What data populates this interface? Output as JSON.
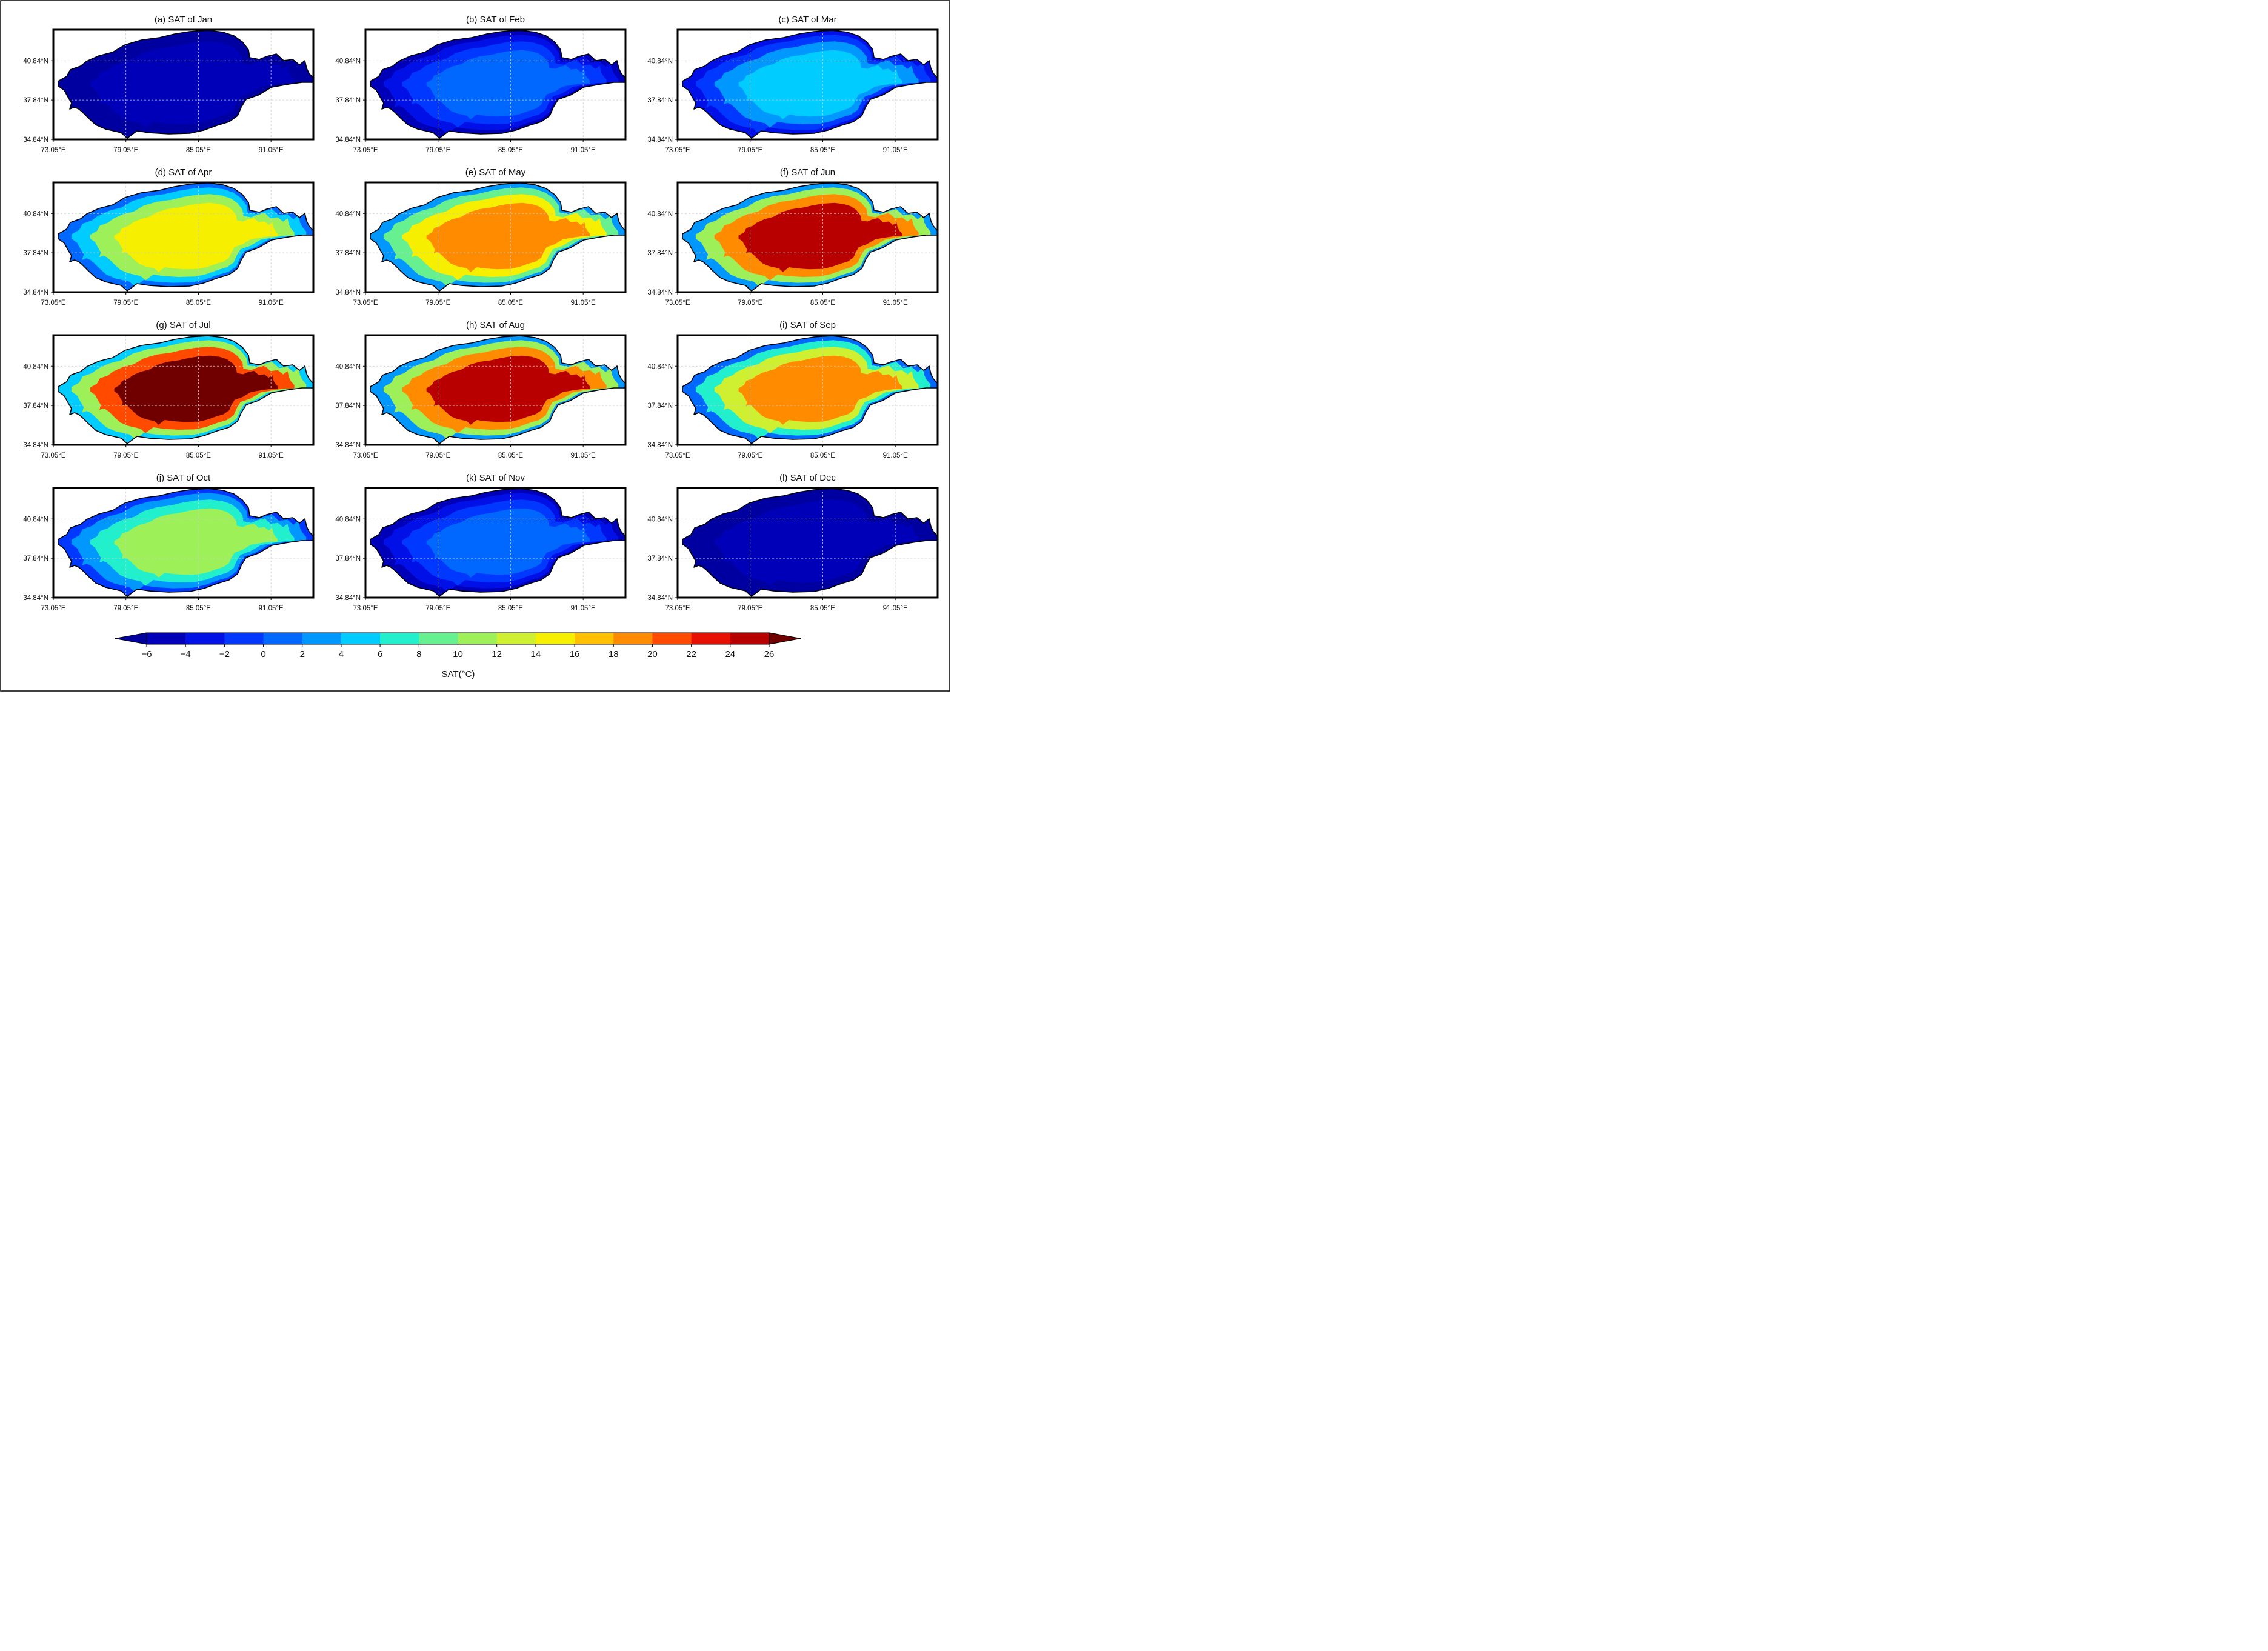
{
  "chart_data": {
    "type": "heatmap",
    "variable_label": "SAT(°C)",
    "colorbar": {
      "levels": [
        -6,
        -4,
        -2,
        0,
        2,
        4,
        6,
        8,
        10,
        12,
        14,
        16,
        18,
        20,
        22,
        24,
        26
      ],
      "tick_labels": [
        "−6",
        "−4",
        "−2",
        "0",
        "2",
        "4",
        "6",
        "8",
        "10",
        "12",
        "14",
        "16",
        "18",
        "20",
        "22",
        "24",
        "26"
      ],
      "under_color": "#0000a0",
      "over_color": "#700000",
      "colors": [
        "#0000b8",
        "#0010e6",
        "#0038ff",
        "#0068ff",
        "#0098ff",
        "#00ccff",
        "#22f0cc",
        "#66f090",
        "#9ef058",
        "#cef030",
        "#f6f000",
        "#ffc000",
        "#ff8c00",
        "#ff4a00",
        "#e81000",
        "#b80000"
      ]
    },
    "x_ticks": [
      "73.05°E",
      "79.05°E",
      "85.05°E",
      "91.05°E"
    ],
    "y_ticks": [
      "40.84°N",
      "37.84°N",
      "34.84°N"
    ],
    "x_tick_values": [
      73.05,
      79.05,
      85.05,
      91.05
    ],
    "y_tick_values": [
      40.84,
      37.84,
      34.84
    ],
    "lon_range": [
      73.05,
      94.55
    ],
    "lat_range": [
      34.84,
      43.21
    ],
    "panels": [
      {
        "title": "(a) SAT of Jan",
        "core": -5.5,
        "edge": -7.0
      },
      {
        "title": "(b) SAT of Feb",
        "core": 0.5,
        "edge": -5.0
      },
      {
        "title": "(c) SAT of Mar",
        "core": 4.5,
        "edge": -4.0
      },
      {
        "title": "(d) SAT of Apr",
        "core": 14.8,
        "edge": 1.0
      },
      {
        "title": "(e) SAT of May",
        "core": 19.5,
        "edge": 2.0
      },
      {
        "title": "(f) SAT of Jun",
        "core": 24.5,
        "edge": 3.0
      },
      {
        "title": "(g) SAT of Jul",
        "core": 26.5,
        "edge": 4.0
      },
      {
        "title": "(h) SAT of Aug",
        "core": 25.0,
        "edge": 3.5
      },
      {
        "title": "(i) SAT of Sep",
        "core": 19.0,
        "edge": 1.0
      },
      {
        "title": "(j) SAT of Oct",
        "core": 11.0,
        "edge": -2.0
      },
      {
        "title": "(k) SAT of Nov",
        "core": 1.5,
        "edge": -5.0
      },
      {
        "title": "(l) SAT of Dec",
        "core": -4.5,
        "edge": -7.0
      }
    ]
  }
}
